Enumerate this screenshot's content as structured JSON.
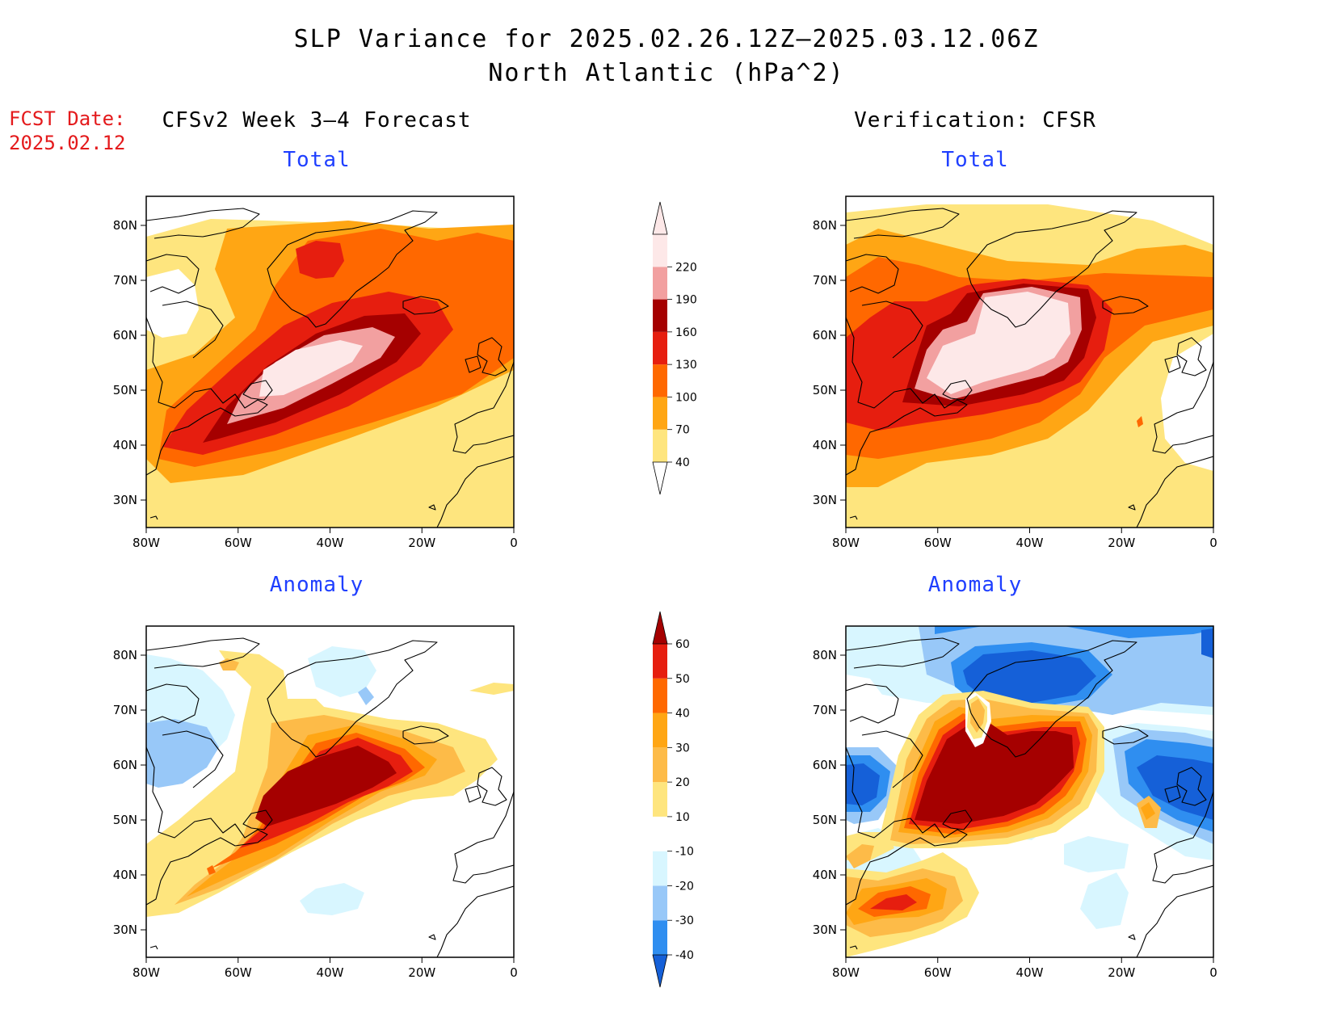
{
  "title": {
    "line1": "SLP Variance for 2025.02.26.12Z–2025.03.12.06Z",
    "line2": "North Atlantic (hPa^2)"
  },
  "fcst_date": {
    "label": "FCST Date:",
    "value": "2025.02.12"
  },
  "columns": {
    "left": "CFSv2 Week 3–4 Forecast",
    "right": "Verification: CFSR"
  },
  "panels": [
    {
      "id": "fcst-total",
      "subtitle": "Total"
    },
    {
      "id": "verif-total",
      "subtitle": "Total"
    },
    {
      "id": "fcst-anomaly",
      "subtitle": "Anomaly"
    },
    {
      "id": "verif-anomaly",
      "subtitle": "Anomaly"
    }
  ],
  "axes": {
    "lon_ticks": [
      "80W",
      "60W",
      "40W",
      "20W",
      "0"
    ],
    "lat_ticks": [
      "80N",
      "70N",
      "60N",
      "50N",
      "40N",
      "30N"
    ]
  },
  "colorbars": {
    "total": {
      "levels": [
        "40",
        "70",
        "100",
        "130",
        "160",
        "190",
        "220"
      ],
      "colors": [
        "#fee57e",
        "#ffa614",
        "#ff6800",
        "#e61e0f",
        "#a50000",
        "#f2a0a0",
        "#fde8e8"
      ]
    },
    "anomaly": {
      "levels": [
        "-40",
        "-30",
        "-20",
        "-10",
        "10",
        "20",
        "30",
        "40",
        "50",
        "60"
      ],
      "colors": [
        "#1560d8",
        "#2f8ef0",
        "#98c8f8",
        "#d8f6ff",
        "#ffffff",
        "#fee57e",
        "#fdbb48",
        "#ffa614",
        "#ff6800",
        "#e61e0f",
        "#a50000"
      ]
    }
  }
}
